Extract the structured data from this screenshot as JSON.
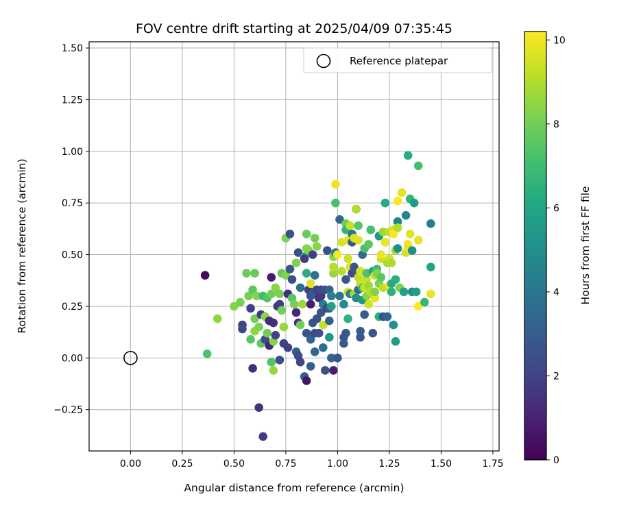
{
  "chart_data": {
    "type": "scatter",
    "title": "FOV centre drift starting at 2025/04/09 07:35:45",
    "xlabel": "Angular distance from reference (arcmin)",
    "ylabel": "Rotation from reference (arcmin)",
    "xlim": [
      -0.2,
      1.78
    ],
    "ylim": [
      -0.45,
      1.53
    ],
    "xticks": [
      0.0,
      0.25,
      0.5,
      0.75,
      1.0,
      1.25,
      1.5,
      1.75
    ],
    "xtick_labels": [
      "0.00",
      "0.25",
      "0.50",
      "0.75",
      "1.00",
      "1.25",
      "1.50",
      "1.75"
    ],
    "yticks": [
      -0.25,
      0.0,
      0.25,
      0.5,
      0.75,
      1.0,
      1.25,
      1.5
    ],
    "ytick_labels": [
      "−0.25",
      "0.00",
      "0.25",
      "0.50",
      "0.75",
      "1.00",
      "1.25",
      "1.50"
    ],
    "grid": true,
    "legend": {
      "position": "top-right",
      "entries": [
        "Reference platepar"
      ]
    },
    "reference_point": {
      "x": 0.0,
      "y": 0.0
    },
    "colorbar": {
      "label": "Hours from first FF file",
      "colormap": "viridis",
      "range": [
        0,
        10.2
      ],
      "ticks": [
        0,
        2,
        4,
        6,
        8,
        10
      ],
      "tick_labels": [
        "0",
        "2",
        "4",
        "6",
        "8",
        "10"
      ]
    },
    "points": [
      {
        "x": 0.36,
        "y": 0.4,
        "c": 0.2
      },
      {
        "x": 0.37,
        "y": 0.02,
        "c": 7.3
      },
      {
        "x": 0.42,
        "y": 0.19,
        "c": 8.5
      },
      {
        "x": 0.5,
        "y": 0.25,
        "c": 8.3
      },
      {
        "x": 0.53,
        "y": 0.27,
        "c": 8.1
      },
      {
        "x": 0.54,
        "y": 0.16,
        "c": 2.1
      },
      {
        "x": 0.54,
        "y": 0.14,
        "c": 2.3
      },
      {
        "x": 0.56,
        "y": 0.41,
        "c": 7.9
      },
      {
        "x": 0.57,
        "y": 0.3,
        "c": 8.1
      },
      {
        "x": 0.58,
        "y": 0.24,
        "c": 1.9
      },
      {
        "x": 0.58,
        "y": 0.09,
        "c": 7.5
      },
      {
        "x": 0.59,
        "y": -0.05,
        "c": 1.3
      },
      {
        "x": 0.59,
        "y": 0.33,
        "c": 7.6
      },
      {
        "x": 0.6,
        "y": 0.41,
        "c": 7.8
      },
      {
        "x": 0.6,
        "y": 0.19,
        "c": 8.0
      },
      {
        "x": 0.6,
        "y": 0.13,
        "c": 8.5
      },
      {
        "x": 0.61,
        "y": 0.3,
        "c": 8.3
      },
      {
        "x": 0.62,
        "y": -0.24,
        "c": 1.5
      },
      {
        "x": 0.62,
        "y": 0.15,
        "c": 8.2
      },
      {
        "x": 0.63,
        "y": 0.07,
        "c": 7.6
      },
      {
        "x": 0.63,
        "y": 0.21,
        "c": 1.7
      },
      {
        "x": 0.64,
        "y": -0.38,
        "c": 1.8
      },
      {
        "x": 0.64,
        "y": 0.3,
        "c": 7.0
      },
      {
        "x": 0.65,
        "y": 0.2,
        "c": 8.4
      },
      {
        "x": 0.65,
        "y": 0.09,
        "c": 2.2
      },
      {
        "x": 0.66,
        "y": 0.12,
        "c": 8.0
      },
      {
        "x": 0.66,
        "y": 0.29,
        "c": 7.4
      },
      {
        "x": 0.67,
        "y": 0.06,
        "c": 1.0
      },
      {
        "x": 0.67,
        "y": 0.18,
        "c": 1.2
      },
      {
        "x": 0.68,
        "y": -0.02,
        "c": 7.4
      },
      {
        "x": 0.68,
        "y": 0.39,
        "c": 0.8
      },
      {
        "x": 0.68,
        "y": 0.31,
        "c": 8.0
      },
      {
        "x": 0.69,
        "y": -0.06,
        "c": 8.6
      },
      {
        "x": 0.69,
        "y": 0.08,
        "c": 8.3
      },
      {
        "x": 0.69,
        "y": 0.17,
        "c": 1.4
      },
      {
        "x": 0.7,
        "y": 0.11,
        "c": 2.0
      },
      {
        "x": 0.7,
        "y": 0.34,
        "c": 8.4
      },
      {
        "x": 0.71,
        "y": 0.25,
        "c": 1.6
      },
      {
        "x": 0.72,
        "y": -0.01,
        "c": 2.4
      },
      {
        "x": 0.72,
        "y": 0.31,
        "c": 8.1
      },
      {
        "x": 0.72,
        "y": 0.26,
        "c": 1.8
      },
      {
        "x": 0.73,
        "y": 0.41,
        "c": 7.8
      },
      {
        "x": 0.73,
        "y": 0.23,
        "c": 8.1
      },
      {
        "x": 0.74,
        "y": 0.07,
        "c": 2.0
      },
      {
        "x": 0.74,
        "y": 0.15,
        "c": 8.6
      },
      {
        "x": 0.75,
        "y": 0.58,
        "c": 8.2
      },
      {
        "x": 0.75,
        "y": 0.4,
        "c": 8.3
      },
      {
        "x": 0.76,
        "y": 0.05,
        "c": 1.9
      },
      {
        "x": 0.76,
        "y": 0.31,
        "c": 1.3
      },
      {
        "x": 0.77,
        "y": 0.6,
        "c": 2.5
      },
      {
        "x": 0.77,
        "y": 0.43,
        "c": 2.8
      },
      {
        "x": 0.78,
        "y": 0.38,
        "c": 2.4
      },
      {
        "x": 0.78,
        "y": 0.29,
        "c": 7.5
      },
      {
        "x": 0.79,
        "y": 0.26,
        "c": 8.1
      },
      {
        "x": 0.8,
        "y": 0.22,
        "c": 1.1
      },
      {
        "x": 0.8,
        "y": 0.46,
        "c": 8.2
      },
      {
        "x": 0.8,
        "y": 0.03,
        "c": 3.1
      },
      {
        "x": 0.81,
        "y": 0.01,
        "c": 2.2
      },
      {
        "x": 0.81,
        "y": 0.17,
        "c": 1.2
      },
      {
        "x": 0.81,
        "y": 0.51,
        "c": 2.4
      },
      {
        "x": 0.82,
        "y": 0.34,
        "c": 3.7
      },
      {
        "x": 0.82,
        "y": 0.16,
        "c": 8.0
      },
      {
        "x": 0.82,
        "y": -0.02,
        "c": 2.1
      },
      {
        "x": 0.83,
        "y": 0.26,
        "c": 8.7
      },
      {
        "x": 0.84,
        "y": 0.49,
        "c": 6.2
      },
      {
        "x": 0.84,
        "y": 0.48,
        "c": 1.8
      },
      {
        "x": 0.84,
        "y": -0.09,
        "c": 3.2
      },
      {
        "x": 0.85,
        "y": 0.53,
        "c": 8.5
      },
      {
        "x": 0.85,
        "y": 0.41,
        "c": 6.4
      },
      {
        "x": 0.85,
        "y": 0.12,
        "c": 2.6
      },
      {
        "x": 0.85,
        "y": 0.6,
        "c": 7.8
      },
      {
        "x": 0.85,
        "y": -0.11,
        "c": 0.6
      },
      {
        "x": 0.86,
        "y": 0.33,
        "c": 1.9
      },
      {
        "x": 0.86,
        "y": 0.52,
        "c": 8.3
      },
      {
        "x": 0.87,
        "y": 0.26,
        "c": 0.8
      },
      {
        "x": 0.87,
        "y": 0.36,
        "c": 9.7
      },
      {
        "x": 0.87,
        "y": 0.3,
        "c": 2.6
      },
      {
        "x": 0.87,
        "y": -0.04,
        "c": 3.1
      },
      {
        "x": 0.87,
        "y": 0.09,
        "c": 3.3
      },
      {
        "x": 0.88,
        "y": 0.31,
        "c": 2.9
      },
      {
        "x": 0.88,
        "y": 0.17,
        "c": 2.6
      },
      {
        "x": 0.88,
        "y": 0.5,
        "c": 1.9
      },
      {
        "x": 0.89,
        "y": 0.03,
        "c": 3.4
      },
      {
        "x": 0.89,
        "y": 0.12,
        "c": 2.3
      },
      {
        "x": 0.89,
        "y": 0.58,
        "c": 8.0
      },
      {
        "x": 0.89,
        "y": 0.4,
        "c": 3.8
      },
      {
        "x": 0.9,
        "y": 0.19,
        "c": 2.4
      },
      {
        "x": 0.9,
        "y": 0.54,
        "c": 8.4
      },
      {
        "x": 0.9,
        "y": 0.33,
        "c": 1.8
      },
      {
        "x": 0.91,
        "y": 0.12,
        "c": 2.5
      },
      {
        "x": 0.91,
        "y": 0.29,
        "c": 1.4
      },
      {
        "x": 0.92,
        "y": 0.3,
        "c": 1.6
      },
      {
        "x": 0.92,
        "y": 0.22,
        "c": 2.8
      },
      {
        "x": 0.92,
        "y": 0.33,
        "c": 2.2
      },
      {
        "x": 0.93,
        "y": 0.05,
        "c": 3.7
      },
      {
        "x": 0.93,
        "y": 0.16,
        "c": 9.3
      },
      {
        "x": 0.93,
        "y": 0.26,
        "c": 4.2
      },
      {
        "x": 0.94,
        "y": -0.06,
        "c": 2.5
      },
      {
        "x": 0.94,
        "y": 0.33,
        "c": 2.5
      },
      {
        "x": 0.95,
        "y": 0.52,
        "c": 2.5
      },
      {
        "x": 0.95,
        "y": 0.24,
        "c": 1.9
      },
      {
        "x": 0.96,
        "y": 0.24,
        "c": 3.0
      },
      {
        "x": 0.96,
        "y": 0.33,
        "c": 3.3
      },
      {
        "x": 0.96,
        "y": 0.1,
        "c": 5.3
      },
      {
        "x": 0.96,
        "y": 0.18,
        "c": 3.1
      },
      {
        "x": 0.97,
        "y": 0.3,
        "c": 4.3
      },
      {
        "x": 0.97,
        "y": 0.0,
        "c": 3.4
      },
      {
        "x": 0.97,
        "y": 0.25,
        "c": 5.9
      },
      {
        "x": 0.98,
        "y": 0.41,
        "c": 8.6
      },
      {
        "x": 0.98,
        "y": -0.06,
        "c": 0.9
      },
      {
        "x": 0.98,
        "y": 0.44,
        "c": 9.1
      },
      {
        "x": 0.98,
        "y": 0.49,
        "c": 8.3
      },
      {
        "x": 0.99,
        "y": 0.75,
        "c": 7.2
      },
      {
        "x": 0.99,
        "y": 0.51,
        "c": 4.2
      },
      {
        "x": 0.99,
        "y": 0.84,
        "c": 10.0
      },
      {
        "x": 1.0,
        "y": 0.5,
        "c": 10.2
      },
      {
        "x": 1.0,
        "y": 0.0,
        "c": 2.7
      },
      {
        "x": 1.01,
        "y": 0.67,
        "c": 3.3
      },
      {
        "x": 1.01,
        "y": 0.3,
        "c": 3.9
      },
      {
        "x": 1.02,
        "y": 0.56,
        "c": 9.6
      },
      {
        "x": 1.02,
        "y": 0.42,
        "c": 9.1
      },
      {
        "x": 1.03,
        "y": 0.1,
        "c": 2.6
      },
      {
        "x": 1.03,
        "y": 0.07,
        "c": 2.9
      },
      {
        "x": 1.03,
        "y": 0.26,
        "c": 4.8
      },
      {
        "x": 1.04,
        "y": 0.65,
        "c": 7.9
      },
      {
        "x": 1.04,
        "y": 0.62,
        "c": 6.6
      },
      {
        "x": 1.04,
        "y": 0.38,
        "c": 2.7
      },
      {
        "x": 1.04,
        "y": 0.12,
        "c": 2.8
      },
      {
        "x": 1.05,
        "y": 0.57,
        "c": 9.8
      },
      {
        "x": 1.05,
        "y": 0.48,
        "c": 9.4
      },
      {
        "x": 1.05,
        "y": 0.32,
        "c": 9.5
      },
      {
        "x": 1.05,
        "y": 0.19,
        "c": 6.5
      },
      {
        "x": 1.06,
        "y": 0.44,
        "c": 9.7
      },
      {
        "x": 1.06,
        "y": 0.31,
        "c": 4.4
      },
      {
        "x": 1.06,
        "y": 0.64,
        "c": 9.3
      },
      {
        "x": 1.07,
        "y": 0.56,
        "c": 3.0
      },
      {
        "x": 1.07,
        "y": 0.41,
        "c": 2.4
      },
      {
        "x": 1.07,
        "y": 0.6,
        "c": 4.0
      },
      {
        "x": 1.08,
        "y": 0.31,
        "c": 8.9
      },
      {
        "x": 1.08,
        "y": 0.58,
        "c": 9.6
      },
      {
        "x": 1.08,
        "y": 0.44,
        "c": 2.7
      },
      {
        "x": 1.09,
        "y": 0.72,
        "c": 2.4
      },
      {
        "x": 1.09,
        "y": 0.72,
        "c": 9.0
      },
      {
        "x": 1.09,
        "y": 0.29,
        "c": 9.8
      },
      {
        "x": 1.09,
        "y": 0.29,
        "c": 4.9
      },
      {
        "x": 1.1,
        "y": 0.64,
        "c": 7.5
      },
      {
        "x": 1.1,
        "y": 0.39,
        "c": 9.2
      },
      {
        "x": 1.1,
        "y": 0.33,
        "c": 3.8
      },
      {
        "x": 1.1,
        "y": 0.57,
        "c": 9.7
      },
      {
        "x": 1.11,
        "y": 0.36,
        "c": 9.4
      },
      {
        "x": 1.11,
        "y": 0.42,
        "c": 9.6
      },
      {
        "x": 1.11,
        "y": 0.1,
        "c": 2.6
      },
      {
        "x": 1.11,
        "y": 0.13,
        "c": 2.9
      },
      {
        "x": 1.12,
        "y": 0.5,
        "c": 3.6
      },
      {
        "x": 1.12,
        "y": 0.28,
        "c": 5.3
      },
      {
        "x": 1.12,
        "y": 0.34,
        "c": 7.0
      },
      {
        "x": 1.13,
        "y": 0.53,
        "c": 7.2
      },
      {
        "x": 1.13,
        "y": 0.34,
        "c": 9.3
      },
      {
        "x": 1.13,
        "y": 0.21,
        "c": 3.0
      },
      {
        "x": 1.14,
        "y": 0.3,
        "c": 8.4
      },
      {
        "x": 1.14,
        "y": 0.38,
        "c": 9.4
      },
      {
        "x": 1.14,
        "y": 0.41,
        "c": 7.3
      },
      {
        "x": 1.15,
        "y": 0.55,
        "c": 7.6
      },
      {
        "x": 1.15,
        "y": 0.35,
        "c": 8.7
      },
      {
        "x": 1.15,
        "y": 0.26,
        "c": 9.5
      },
      {
        "x": 1.16,
        "y": 0.62,
        "c": 7.2
      },
      {
        "x": 1.16,
        "y": 0.32,
        "c": 9.0
      },
      {
        "x": 1.17,
        "y": 0.12,
        "c": 2.7
      },
      {
        "x": 1.17,
        "y": 0.42,
        "c": 6.0
      },
      {
        "x": 1.18,
        "y": 0.4,
        "c": 9.3
      },
      {
        "x": 1.18,
        "y": 0.29,
        "c": 9.8
      },
      {
        "x": 1.18,
        "y": 0.32,
        "c": 8.3
      },
      {
        "x": 1.19,
        "y": 0.43,
        "c": 6.9
      },
      {
        "x": 1.19,
        "y": 0.41,
        "c": 8.2
      },
      {
        "x": 1.2,
        "y": 0.36,
        "c": 8.2
      },
      {
        "x": 1.2,
        "y": 0.59,
        "c": 5.4
      },
      {
        "x": 1.2,
        "y": 0.2,
        "c": 6.5
      },
      {
        "x": 1.21,
        "y": 0.48,
        "c": 9.4
      },
      {
        "x": 1.21,
        "y": 0.39,
        "c": 7.6
      },
      {
        "x": 1.21,
        "y": 0.5,
        "c": 9.9
      },
      {
        "x": 1.22,
        "y": 0.61,
        "c": 8.7
      },
      {
        "x": 1.22,
        "y": 0.2,
        "c": 2.6
      },
      {
        "x": 1.22,
        "y": 0.34,
        "c": 9.2
      },
      {
        "x": 1.23,
        "y": 0.75,
        "c": 6.2
      },
      {
        "x": 1.23,
        "y": 0.56,
        "c": 9.9
      },
      {
        "x": 1.24,
        "y": 0.46,
        "c": 8.8
      },
      {
        "x": 1.24,
        "y": 0.2,
        "c": 3.3
      },
      {
        "x": 1.25,
        "y": 0.48,
        "c": 9.5
      },
      {
        "x": 1.25,
        "y": 0.35,
        "c": 10.0
      },
      {
        "x": 1.25,
        "y": 0.61,
        "c": 9.2
      },
      {
        "x": 1.26,
        "y": 0.36,
        "c": 6.2
      },
      {
        "x": 1.26,
        "y": 0.46,
        "c": 8.9
      },
      {
        "x": 1.26,
        "y": 0.32,
        "c": 6.5
      },
      {
        "x": 1.27,
        "y": 0.62,
        "c": 9.6
      },
      {
        "x": 1.27,
        "y": 0.16,
        "c": 5.1
      },
      {
        "x": 1.27,
        "y": 0.6,
        "c": 10.1
      },
      {
        "x": 1.28,
        "y": 0.52,
        "c": 9.0
      },
      {
        "x": 1.28,
        "y": 0.08,
        "c": 5.6
      },
      {
        "x": 1.28,
        "y": 0.38,
        "c": 6.4
      },
      {
        "x": 1.29,
        "y": 0.76,
        "c": 10.2
      },
      {
        "x": 1.29,
        "y": 0.66,
        "c": 4.6
      },
      {
        "x": 1.29,
        "y": 0.53,
        "c": 5.0
      },
      {
        "x": 1.29,
        "y": 0.63,
        "c": 9.0
      },
      {
        "x": 1.3,
        "y": 0.34,
        "c": 8.2
      },
      {
        "x": 1.31,
        "y": 0.8,
        "c": 9.8
      },
      {
        "x": 1.32,
        "y": 0.32,
        "c": 5.7
      },
      {
        "x": 1.33,
        "y": 0.51,
        "c": 9.5
      },
      {
        "x": 1.33,
        "y": 0.69,
        "c": 4.5
      },
      {
        "x": 1.34,
        "y": 0.98,
        "c": 6.4
      },
      {
        "x": 1.34,
        "y": 0.55,
        "c": 10.1
      },
      {
        "x": 1.34,
        "y": 0.53,
        "c": 9.8
      },
      {
        "x": 1.35,
        "y": 0.77,
        "c": 6.6
      },
      {
        "x": 1.35,
        "y": 0.6,
        "c": 9.7
      },
      {
        "x": 1.36,
        "y": 0.52,
        "c": 4.9
      },
      {
        "x": 1.36,
        "y": 0.32,
        "c": 4.8
      },
      {
        "x": 1.37,
        "y": 0.75,
        "c": 5.6
      },
      {
        "x": 1.38,
        "y": 0.32,
        "c": 5.7
      },
      {
        "x": 1.39,
        "y": 0.93,
        "c": 7.1
      },
      {
        "x": 1.39,
        "y": 0.25,
        "c": 10.2
      },
      {
        "x": 1.39,
        "y": 0.57,
        "c": 9.8
      },
      {
        "x": 1.42,
        "y": 0.27,
        "c": 6.8
      },
      {
        "x": 1.45,
        "y": 0.65,
        "c": 4.3
      },
      {
        "x": 1.45,
        "y": 0.44,
        "c": 6.0
      },
      {
        "x": 1.45,
        "y": 0.31,
        "c": 9.9
      }
    ]
  }
}
